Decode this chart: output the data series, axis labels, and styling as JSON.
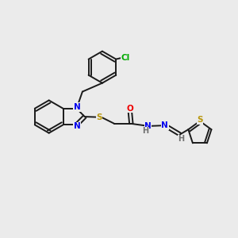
{
  "background_color": "#ebebeb",
  "bond_color": "#1a1a1a",
  "atom_colors": {
    "N": "#0000ee",
    "S": "#b8960c",
    "O": "#ee0000",
    "Cl": "#00aa00",
    "C": "#1a1a1a",
    "H": "#707070"
  },
  "figsize": [
    3.0,
    3.0
  ],
  "dpi": 100
}
